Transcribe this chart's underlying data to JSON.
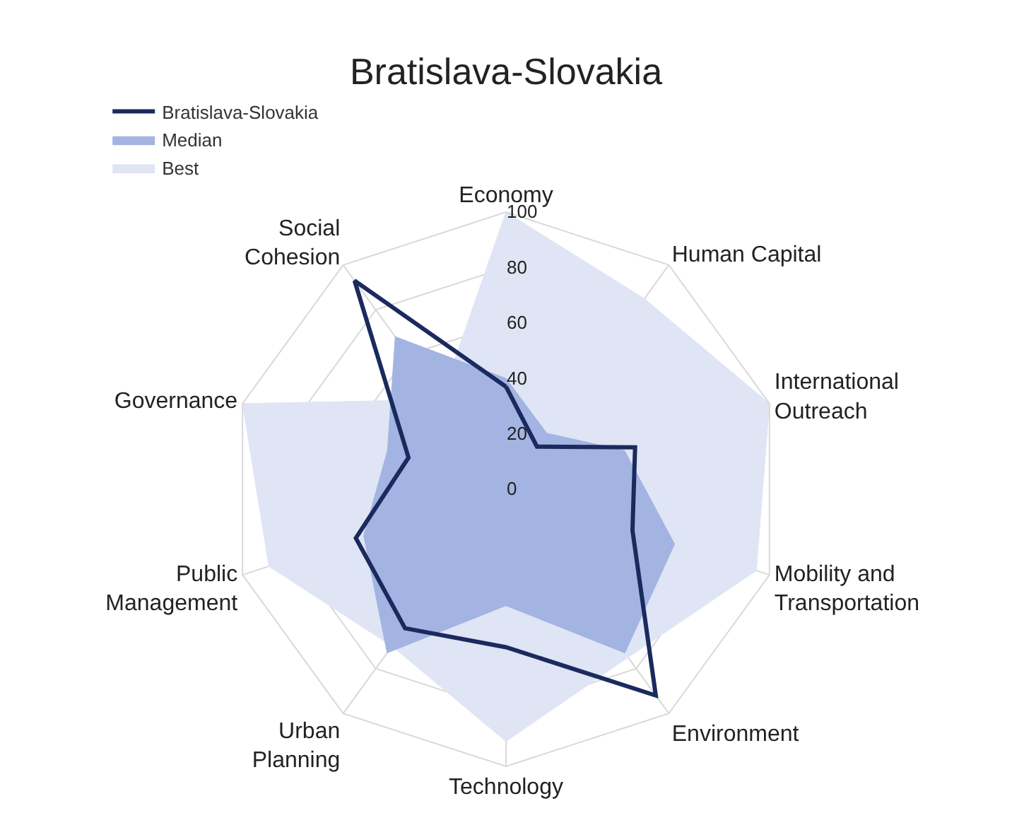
{
  "chart_data": {
    "type": "radar",
    "title": "Bratislava-Slovakia",
    "categories": [
      "Economy",
      "Human Capital",
      "International Outreach",
      "Mobility and Transportation",
      "Environment",
      "Technology",
      "Urban Planning",
      "Public Management",
      "Governance",
      "Social Cohesion"
    ],
    "ylim": [
      0,
      100
    ],
    "yticks": [
      0,
      20,
      40,
      60,
      80,
      100
    ],
    "grid": true,
    "legend": "top left",
    "marker": "none",
    "series": [
      {
        "name": "Best",
        "type": "area",
        "color": "#dfe5f4",
        "values": [
          100,
          85,
          100,
          95,
          75,
          91,
          70,
          90,
          100,
          40
        ]
      },
      {
        "name": "Median",
        "type": "area",
        "color": "#a3b4e2",
        "values": [
          40,
          25,
          45,
          64,
          73,
          42,
          73,
          54,
          45,
          68
        ]
      },
      {
        "name": "Bratislava-Slovakia",
        "color": "#1b2a5e",
        "values": [
          37,
          19,
          49,
          48,
          92,
          57,
          62,
          57,
          37,
          93
        ]
      }
    ]
  }
}
